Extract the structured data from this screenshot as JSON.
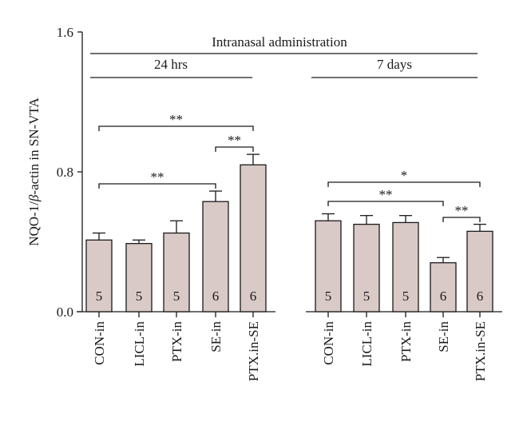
{
  "chart_data": {
    "type": "bar",
    "ylabel_parts": [
      "NQO-1/",
      "β",
      "-actin in SN-VTA"
    ],
    "ylim": [
      0,
      1.6
    ],
    "yticks": [
      "0.0",
      "0.8",
      "1.6"
    ],
    "grid": false,
    "header": "Intranasal administration",
    "groups": [
      {
        "label": "24 hrs",
        "categories": [
          "CON-in",
          "LICL-in",
          "PTX-in",
          "SE-in",
          "PTX.in-SE"
        ],
        "values": [
          0.41,
          0.39,
          0.45,
          0.63,
          0.84
        ],
        "errors": [
          0.04,
          0.02,
          0.07,
          0.06,
          0.06
        ],
        "n": [
          "5",
          "5",
          "5",
          "6",
          "6"
        ],
        "comparisons": [
          {
            "from": 0,
            "to": 4,
            "label": "**"
          },
          {
            "from": 3,
            "to": 4,
            "label": "**"
          },
          {
            "from": 0,
            "to": 3,
            "label": "**"
          }
        ]
      },
      {
        "label": "7 days",
        "categories": [
          "CON-in",
          "LICL-in",
          "PTX-in",
          "SE-in",
          "PTX.in-SE"
        ],
        "values": [
          0.52,
          0.5,
          0.51,
          0.28,
          0.46
        ],
        "errors": [
          0.04,
          0.05,
          0.04,
          0.03,
          0.04
        ],
        "n": [
          "5",
          "5",
          "5",
          "6",
          "6"
        ],
        "comparisons": [
          {
            "from": 0,
            "to": 4,
            "label": "*"
          },
          {
            "from": 0,
            "to": 3,
            "label": "**"
          },
          {
            "from": 3,
            "to": 4,
            "label": "**"
          }
        ]
      }
    ],
    "colors": {
      "bar_fill": "#d9cac7",
      "stroke": "#1a1a1a"
    }
  }
}
